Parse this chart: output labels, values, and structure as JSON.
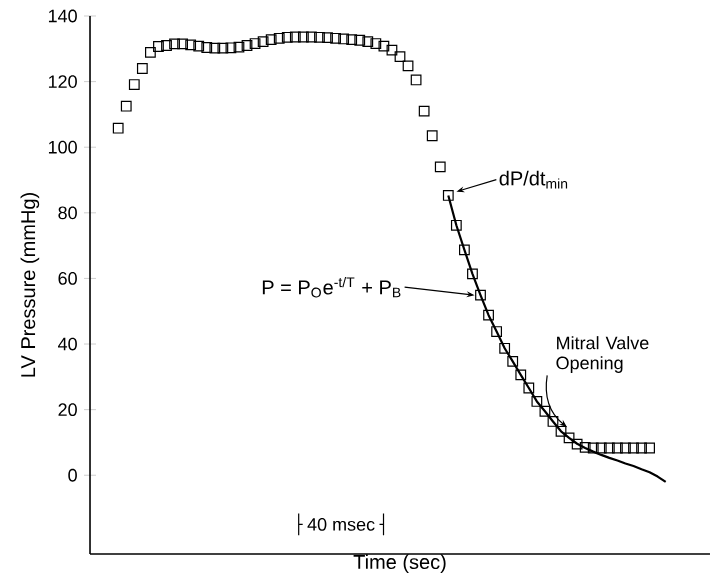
{
  "chart_data": {
    "type": "scatter",
    "ylabel": "LV Pressure (mmHg)",
    "xlabel": "Time (sec)",
    "ylim": [
      -24,
      140
    ],
    "yticks": [
      0,
      20,
      40,
      60,
      80,
      100,
      120,
      140
    ],
    "tick_labels": "y",
    "grid": false,
    "marker": "square",
    "categories": [
      null,
      null,
      null,
      null,
      null,
      null,
      null,
      null,
      null,
      null,
      null,
      null,
      null,
      null,
      null,
      null,
      null,
      null,
      null,
      null,
      null,
      null,
      null,
      null,
      null,
      null,
      null,
      null,
      null,
      null,
      null,
      null,
      null,
      null,
      null,
      null,
      null,
      null,
      null,
      null,
      null,
      null,
      null,
      null,
      null,
      null,
      null,
      null,
      null,
      null,
      null,
      null,
      null,
      null,
      null,
      null,
      null,
      null,
      null,
      null,
      null,
      null,
      null,
      null,
      null,
      null,
      null,
      null,
      null,
      null,
      null,
      null,
      null,
      null,
      null,
      null,
      null
    ],
    "series": [
      {
        "color": "#000000",
        "values": [
          null,
          null,
          null,
          105.8,
          112.5,
          119.1,
          124,
          128.9,
          130.7,
          131,
          131.5,
          131.5,
          131.2,
          130.8,
          130.4,
          130.2,
          130.2,
          130.3,
          130.5,
          131,
          131.6,
          132.2,
          132.8,
          133.2,
          133.5,
          133.6,
          133.6,
          133.6,
          133.5,
          133.4,
          133.2,
          133,
          132.8,
          132.6,
          132.2,
          131.6,
          130.8,
          129.6,
          127.6,
          124.8,
          120.5,
          111,
          103.5,
          94,
          85.3,
          76.2,
          68.7,
          61.4,
          54.9,
          48.8,
          43.8,
          38.7,
          34.7,
          30.6,
          26.6,
          22.5,
          19.5,
          16.4,
          13.4,
          11.4,
          9.5,
          8.5,
          8.3,
          8.3,
          8.3,
          8.3,
          8.3,
          8.3,
          8.3,
          8.3,
          null,
          null,
          null,
          null,
          null,
          null,
          null
        ]
      },
      {
        "type": "line",
        "marker": "none",
        "color": "#000000",
        "values": [
          null,
          null,
          null,
          null,
          null,
          null,
          null,
          null,
          null,
          null,
          null,
          null,
          null,
          null,
          null,
          null,
          null,
          null,
          null,
          null,
          null,
          null,
          null,
          null,
          null,
          null,
          null,
          null,
          null,
          null,
          null,
          null,
          null,
          null,
          null,
          null,
          null,
          null,
          null,
          null,
          null,
          null,
          null,
          null,
          85.3,
          76.2,
          68.7,
          61.4,
          54.9,
          48.8,
          43.8,
          38.7,
          34.7,
          30.6,
          26.6,
          22.5,
          19.5,
          16.4,
          13.4,
          11.4,
          9.6,
          8.3,
          7.2,
          6.2,
          5.3,
          4.5,
          3.6,
          2.8,
          1.8,
          0.9,
          -0.4,
          -2,
          null,
          null,
          null,
          null,
          null
        ]
      }
    ],
    "annotations": [
      "dP/dt$_{min}$",
      "P = P$_{O}$e$^{-t/T}$ + P$_{B}$",
      "Mitral Valve Opening",
      "40 msec"
    ]
  }
}
